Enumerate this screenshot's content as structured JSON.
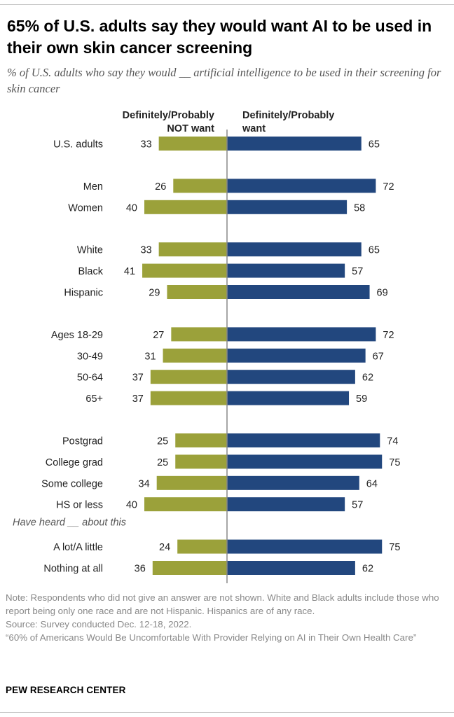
{
  "header": {
    "title": "65% of U.S. adults say they would want AI to be used in their own skin cancer screening",
    "subtitle": "% of U.S. adults who say they would __ artificial intelligence to be used in their screening for skin cancer"
  },
  "colors": {
    "not_want": "#9BA13A",
    "want": "#22477E",
    "axis": "#888888"
  },
  "chart_data": {
    "type": "bar",
    "orientation": "horizontal-diverging",
    "series": [
      {
        "name": "Definitely/Probably NOT want",
        "header_lines": [
          "Definitely/Probably",
          "NOT want"
        ],
        "values": [
          33,
          26,
          40,
          33,
          41,
          29,
          27,
          31,
          37,
          37,
          25,
          25,
          34,
          40,
          24,
          36
        ]
      },
      {
        "name": "Definitely/Probably want",
        "header_lines": [
          "Definitely/Probably",
          "want"
        ],
        "values": [
          65,
          72,
          58,
          65,
          57,
          69,
          72,
          67,
          62,
          59,
          74,
          75,
          64,
          57,
          75,
          62
        ]
      }
    ],
    "categories": [
      "U.S. adults",
      "Men",
      "Women",
      "White",
      "Black",
      "Hispanic",
      "Ages 18-29",
      "30-49",
      "50-64",
      "65+",
      "Postgrad",
      "College grad",
      "Some college",
      "HS or less",
      "A lot/A little",
      "Nothing at all"
    ],
    "groups": [
      1,
      2,
      2,
      3,
      3,
      3,
      4,
      4,
      4,
      4,
      5,
      5,
      5,
      5,
      6,
      6
    ],
    "group_labels": [
      {
        "before_index": 14,
        "text": "Have heard __ about this"
      }
    ],
    "xlim": [
      0,
      100
    ]
  },
  "footer": {
    "note": "Note: Respondents who did not give an answer are not shown. White and Black adults include those who report being only one race and are not Hispanic. Hispanics are of any race.",
    "source": "Source: Survey conducted Dec. 12-18, 2022.",
    "report": "“60% of Americans Would Be Uncomfortable With Provider Relying on AI in Their Own Health Care”",
    "brand": "PEW RESEARCH CENTER"
  }
}
